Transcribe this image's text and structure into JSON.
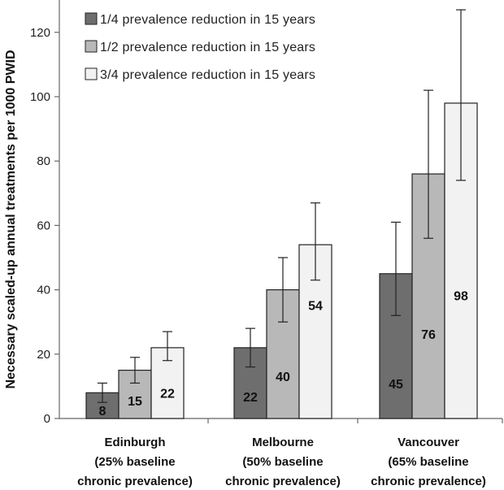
{
  "chart_data": {
    "type": "bar",
    "title": "",
    "xlabel": "",
    "ylabel": "Necessary scaled-up annual treatments per 1000 PWID",
    "ylim": [
      0,
      130
    ],
    "yticks": [
      0,
      20,
      40,
      60,
      80,
      100,
      120
    ],
    "grid": false,
    "legend_placement": "top-left",
    "categories": [
      [
        "Edinburgh",
        "(25% baseline",
        "chronic prevalence)"
      ],
      [
        "Melbourne",
        "(50% baseline",
        "chronic prevalence)"
      ],
      [
        "Vancouver",
        "(65% baseline",
        "chronic prevalence)"
      ]
    ],
    "series": [
      {
        "name": "1/4 prevalence reduction in 15 years",
        "color": "#6e6e6e",
        "values": [
          8,
          22,
          45
        ],
        "error_low": [
          5,
          16,
          32
        ],
        "error_high": [
          11,
          28,
          61
        ],
        "labels": [
          "8",
          "22",
          "45"
        ]
      },
      {
        "name": "1/2 prevalence reduction in 15 years",
        "color": "#b8b8b8",
        "values": [
          15,
          40,
          76
        ],
        "error_low": [
          11,
          30,
          56
        ],
        "error_high": [
          19,
          50,
          102
        ],
        "labels": [
          "15",
          "40",
          "76"
        ]
      },
      {
        "name": "3/4 prevalence reduction in 15 years",
        "color": "#f2f2f2",
        "values": [
          22,
          54,
          98
        ],
        "error_low": [
          18,
          43,
          74
        ],
        "error_high": [
          27,
          67,
          127
        ],
        "labels": [
          "22",
          "54",
          "98"
        ]
      }
    ]
  }
}
